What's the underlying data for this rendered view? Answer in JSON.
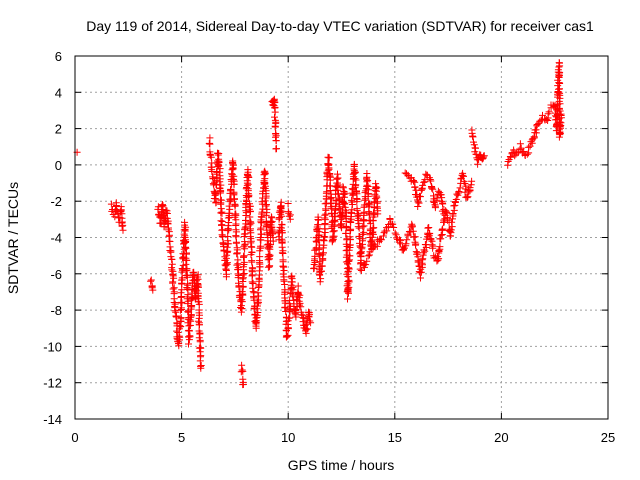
{
  "chart_data": {
    "type": "scatter",
    "title": "Day 119 of 2014, Sidereal Day-to-day VTEC variation (SDTVAR) for receiver cas1",
    "xlabel": "GPS time / hours",
    "ylabel": "SDTVAR / TECUs",
    "xlim": [
      0,
      25
    ],
    "ylim": [
      -14,
      6
    ],
    "grid": true,
    "marker": "+",
    "marker_color": "#ff0000",
    "xticks": [
      "0",
      "5",
      "10",
      "15",
      "20",
      "25"
    ],
    "yticks": [
      "-14",
      "-12",
      "-10",
      "-8",
      "-6",
      "-4",
      "-2",
      "0",
      "2",
      "4",
      "6"
    ],
    "series": [
      {
        "name": "SDTVAR",
        "segments": [
          [
            [
              0.1,
              0.7
            ]
          ],
          [
            [
              1.7,
              -2.3
            ],
            [
              1.85,
              -2.8
            ],
            [
              1.95,
              -2.2
            ],
            [
              2.05,
              -3.0
            ],
            [
              2.15,
              -2.4
            ],
            [
              2.25,
              -3.6
            ]
          ],
          [
            [
              3.55,
              -6.3
            ],
            [
              3.65,
              -6.9
            ]
          ],
          [
            [
              3.9,
              -2.3
            ],
            [
              4.0,
              -3.2
            ],
            [
              4.1,
              -2.1
            ],
            [
              4.2,
              -3.5
            ],
            [
              4.3,
              -2.5
            ],
            [
              4.45,
              -4.3
            ],
            [
              4.55,
              -5.5
            ],
            [
              4.65,
              -7.3
            ],
            [
              4.75,
              -8.4
            ],
            [
              4.85,
              -10.0
            ],
            [
              4.95,
              -8.8
            ],
            [
              5.05,
              -5.6
            ],
            [
              5.15,
              -3.3
            ],
            [
              5.25,
              -6.2
            ],
            [
              5.35,
              -9.7
            ],
            [
              5.45,
              -8.0
            ],
            [
              5.55,
              -5.8
            ],
            [
              5.65,
              -7.5
            ],
            [
              5.75,
              -6.1
            ],
            [
              5.85,
              -9.5
            ],
            [
              5.9,
              -11.2
            ]
          ],
          [
            [
              6.3,
              1.4
            ],
            [
              6.4,
              -0.1
            ],
            [
              6.5,
              -0.8
            ],
            [
              6.6,
              -2.1
            ],
            [
              6.7,
              0.7
            ],
            [
              6.8,
              -0.6
            ],
            [
              6.9,
              -3.8
            ],
            [
              7.0,
              -4.9
            ],
            [
              7.1,
              -6.0
            ],
            [
              7.2,
              -3.2
            ],
            [
              7.3,
              -1.6
            ],
            [
              7.4,
              0.3
            ],
            [
              7.5,
              -2.3
            ],
            [
              7.6,
              -5.0
            ],
            [
              7.7,
              -6.8
            ],
            [
              7.8,
              -8.0
            ],
            [
              7.9,
              -6.2
            ],
            [
              8.0,
              -2.8
            ],
            [
              8.1,
              -0.3
            ],
            [
              8.2,
              -2.4
            ],
            [
              8.3,
              -5.8
            ],
            [
              8.4,
              -7.5
            ],
            [
              8.5,
              -9.0
            ],
            [
              8.6,
              -7.2
            ],
            [
              8.7,
              -4.0
            ],
            [
              8.8,
              -2.0
            ],
            [
              8.9,
              -0.3
            ],
            [
              9.0,
              -3.4
            ],
            [
              9.1,
              -5.6
            ],
            [
              9.2,
              -2.9
            ],
            [
              9.3,
              -4.2
            ]
          ],
          [
            [
              7.8,
              -11.1
            ],
            [
              7.9,
              -12.1
            ]
          ],
          [
            [
              9.25,
              3.5
            ],
            [
              9.3,
              3.2
            ],
            [
              9.35,
              3.7
            ],
            [
              9.45,
              0.9
            ]
          ],
          [
            [
              9.55,
              -4.0
            ],
            [
              9.65,
              -2.0
            ],
            [
              9.75,
              -5.3
            ],
            [
              9.85,
              -7.6
            ],
            [
              9.95,
              -9.5
            ],
            [
              10.05,
              -8.2
            ],
            [
              10.15,
              -6.2
            ],
            [
              10.25,
              -7.4
            ],
            [
              10.35,
              -8.4
            ],
            [
              10.45,
              -6.8
            ],
            [
              10.55,
              -7.6
            ],
            [
              10.65,
              -8.1
            ],
            [
              10.75,
              -8.9
            ],
            [
              10.85,
              -9.2
            ],
            [
              10.95,
              -8.0
            ],
            [
              11.05,
              -8.7
            ]
          ],
          [
            [
              10.0,
              -2.3
            ],
            [
              10.1,
              -3.0
            ]
          ],
          [
            [
              11.2,
              -5.7
            ],
            [
              11.3,
              -4.4
            ],
            [
              11.4,
              -3.0
            ],
            [
              11.5,
              -6.3
            ],
            [
              11.6,
              -5.2
            ],
            [
              11.7,
              -3.9
            ],
            [
              11.8,
              -1.2
            ],
            [
              11.9,
              0.4
            ],
            [
              12.0,
              -1.8
            ],
            [
              12.1,
              -4.3
            ],
            [
              12.2,
              -2.7
            ],
            [
              12.3,
              -0.6
            ],
            [
              12.4,
              -2.2
            ],
            [
              12.5,
              -3.6
            ],
            [
              12.6,
              -1.2
            ],
            [
              12.7,
              -2.6
            ],
            [
              12.8,
              -7.3
            ],
            [
              12.9,
              -4.0
            ],
            [
              13.0,
              -1.9
            ],
            [
              13.1,
              0.1
            ],
            [
              13.2,
              -1.7
            ],
            [
              13.3,
              -3.2
            ],
            [
              13.4,
              -5.5
            ],
            [
              13.5,
              -4.1
            ],
            [
              13.6,
              -2.0
            ],
            [
              13.7,
              -0.6
            ],
            [
              13.8,
              -2.4
            ],
            [
              13.9,
              -4.7
            ],
            [
              14.0,
              -3.3
            ],
            [
              14.1,
              -1.0
            ],
            [
              14.2,
              -2.7
            ]
          ],
          [
            [
              13.4,
              -5.9
            ],
            [
              13.6,
              -5.5
            ],
            [
              13.8,
              -5.0
            ],
            [
              14.0,
              -4.6
            ],
            [
              14.2,
              -4.3
            ],
            [
              14.4,
              -4.0
            ],
            [
              14.6,
              -3.6
            ],
            [
              14.8,
              -3.0
            ],
            [
              15.0,
              -3.6
            ],
            [
              15.2,
              -4.1
            ],
            [
              15.4,
              -4.8
            ],
            [
              15.6,
              -4.0
            ],
            [
              15.8,
              -3.3
            ],
            [
              16.0,
              -4.5
            ],
            [
              16.2,
              -6.1
            ],
            [
              16.4,
              -4.8
            ],
            [
              16.6,
              -3.5
            ],
            [
              16.8,
              -4.9
            ],
            [
              17.0,
              -5.3
            ],
            [
              17.2,
              -3.8
            ],
            [
              17.4,
              -2.5
            ],
            [
              17.6,
              -3.9
            ],
            [
              17.8,
              -2.2
            ],
            [
              18.0,
              -1.3
            ],
            [
              18.2,
              -0.5
            ],
            [
              18.4,
              -1.9
            ],
            [
              18.6,
              -0.9
            ]
          ],
          [
            [
              15.5,
              -0.3
            ],
            [
              15.7,
              -0.6
            ],
            [
              15.9,
              -0.9
            ],
            [
              16.1,
              -2.2
            ],
            [
              16.3,
              -1.3
            ],
            [
              16.5,
              -0.5
            ],
            [
              16.7,
              -0.9
            ],
            [
              16.9,
              -2.3
            ],
            [
              17.1,
              -1.4
            ],
            [
              17.3,
              -2.7
            ]
          ],
          [
            [
              18.6,
              1.8
            ],
            [
              18.7,
              1.3
            ],
            [
              18.8,
              0.6
            ],
            [
              18.9,
              0.2
            ],
            [
              19.0,
              0.4
            ],
            [
              19.1,
              0.3
            ],
            [
              19.2,
              0.5
            ]
          ],
          [
            [
              20.3,
              0.1
            ],
            [
              20.5,
              0.8
            ],
            [
              20.7,
              0.5
            ],
            [
              20.9,
              1.0
            ],
            [
              21.1,
              0.6
            ],
            [
              21.3,
              0.9
            ],
            [
              21.5,
              1.5
            ],
            [
              21.6,
              1.8
            ],
            [
              21.7,
              2.3
            ],
            [
              21.9,
              2.6
            ],
            [
              22.1,
              2.5
            ],
            [
              22.3,
              3.1
            ],
            [
              22.5,
              3.3
            ],
            [
              22.6,
              2.0
            ],
            [
              22.65,
              4.0
            ],
            [
              22.7,
              5.6
            ],
            [
              22.75,
              1.5
            ],
            [
              22.8,
              2.8
            ]
          ]
        ]
      }
    ]
  }
}
